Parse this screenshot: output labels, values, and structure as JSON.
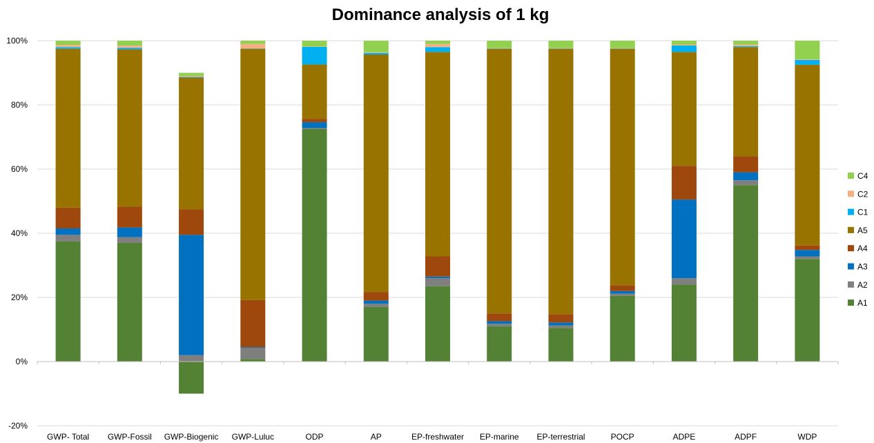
{
  "chart_data": {
    "type": "bar",
    "stacked": true,
    "title": "Dominance analysis of 1 kg",
    "xlabel": "",
    "ylabel": "",
    "ylim": [
      -20,
      100
    ],
    "y_ticks": [
      "-20%",
      "0%",
      "20%",
      "40%",
      "60%",
      "80%",
      "100%"
    ],
    "grid": true,
    "legend_position": "right",
    "categories": [
      "GWP- Total",
      "GWP-Fossil",
      "GWP-Biogenic",
      "GWP-Luluc",
      "ODP",
      "AP",
      "EP-freshwater",
      "EP-marine",
      "EP-terrestrial",
      "POCP",
      "ADPE",
      "ADPF",
      "WDP"
    ],
    "series": [
      {
        "name": "A1",
        "color": "#548235",
        "values": [
          37.5,
          37.0,
          -10.0,
          0.8,
          72.5,
          17.0,
          23.5,
          11.0,
          10.5,
          20.5,
          24.0,
          55.0,
          32.0
        ]
      },
      {
        "name": "A2",
        "color": "#7f7f7f",
        "values": [
          2.0,
          1.8,
          2.0,
          3.5,
          0.3,
          1.0,
          2.5,
          0.8,
          0.8,
          0.7,
          2.0,
          1.5,
          0.8
        ]
      },
      {
        "name": "A3",
        "color": "#0070c0",
        "values": [
          2.0,
          3.0,
          37.5,
          0.2,
          1.8,
          1.0,
          0.5,
          0.8,
          0.9,
          0.8,
          24.5,
          2.5,
          2.0
        ]
      },
      {
        "name": "A4",
        "color": "#9e480e",
        "values": [
          6.5,
          6.5,
          8.0,
          14.7,
          1.0,
          2.7,
          6.3,
          2.4,
          2.6,
          1.8,
          10.5,
          5.0,
          1.4
        ]
      },
      {
        "name": "A5",
        "color": "#997300",
        "values": [
          49.5,
          49.0,
          41.0,
          78.3,
          17.0,
          74.0,
          63.7,
          82.5,
          82.7,
          73.7,
          35.5,
          34.0,
          56.3
        ]
      },
      {
        "name": "C1",
        "color": "#00b0f0",
        "values": [
          0.5,
          0.5,
          0.2,
          0.1,
          5.5,
          0.5,
          1.5,
          0.1,
          0.1,
          0.1,
          2.0,
          0.3,
          1.5
        ]
      },
      {
        "name": "C2",
        "color": "#f4b183",
        "values": [
          0.7,
          0.7,
          0.3,
          1.4,
          0.1,
          0.2,
          1.0,
          0.1,
          0.1,
          0.1,
          0.3,
          0.5,
          0.2
        ]
      },
      {
        "name": "C4",
        "color": "#92d050",
        "values": [
          1.3,
          1.5,
          1.0,
          1.0,
          1.8,
          3.6,
          1.0,
          2.3,
          2.3,
          2.3,
          1.2,
          1.2,
          5.8
        ]
      }
    ]
  }
}
